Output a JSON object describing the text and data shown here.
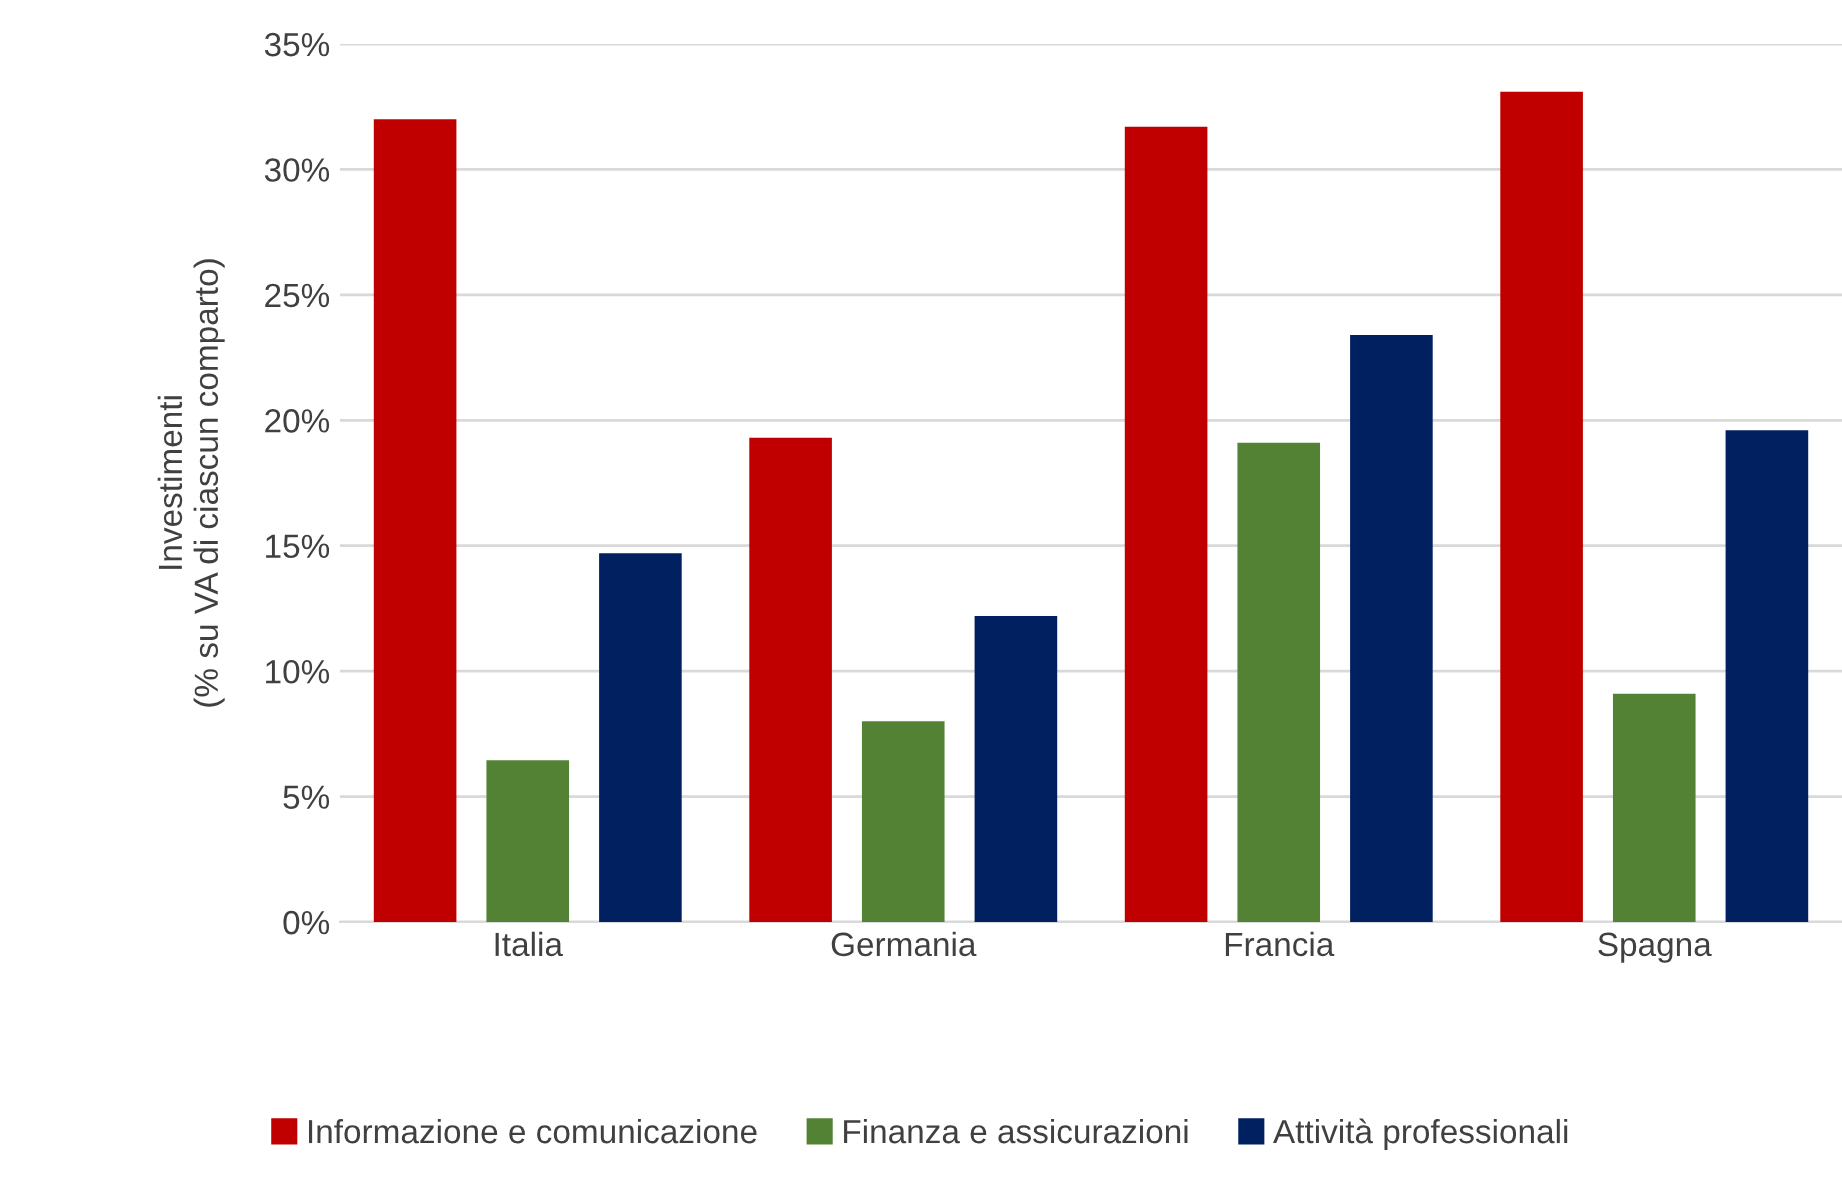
{
  "chart_data": {
    "type": "bar",
    "ylabel": "Investimenti\n(% su VA di ciascun comparto)",
    "categories": [
      "Italia",
      "Germania",
      "Francia",
      "Spagna"
    ],
    "series": [
      {
        "name": "Informazione e comunicazione",
        "color": "#c00000",
        "values": [
          32.0,
          19.3,
          31.7,
          33.1
        ]
      },
      {
        "name": "Finanza e assicurazioni",
        "color": "#548235",
        "values": [
          6.45,
          8.0,
          19.1,
          9.1
        ]
      },
      {
        "name": "Attività professionali",
        "color": "#002060",
        "values": [
          14.7,
          12.2,
          23.4,
          19.6
        ]
      }
    ],
    "ylim": [
      0,
      35
    ],
    "yticks": [
      {
        "value": 0,
        "label": "0%"
      },
      {
        "value": 5,
        "label": "5%"
      },
      {
        "value": 10,
        "label": "10%"
      },
      {
        "value": 15,
        "label": "15%"
      },
      {
        "value": 20,
        "label": "20%"
      },
      {
        "value": 25,
        "label": "25%"
      },
      {
        "value": 30,
        "label": "30%"
      },
      {
        "value": 35,
        "label": "35%"
      }
    ],
    "grid": "y",
    "legend": "bottom"
  }
}
